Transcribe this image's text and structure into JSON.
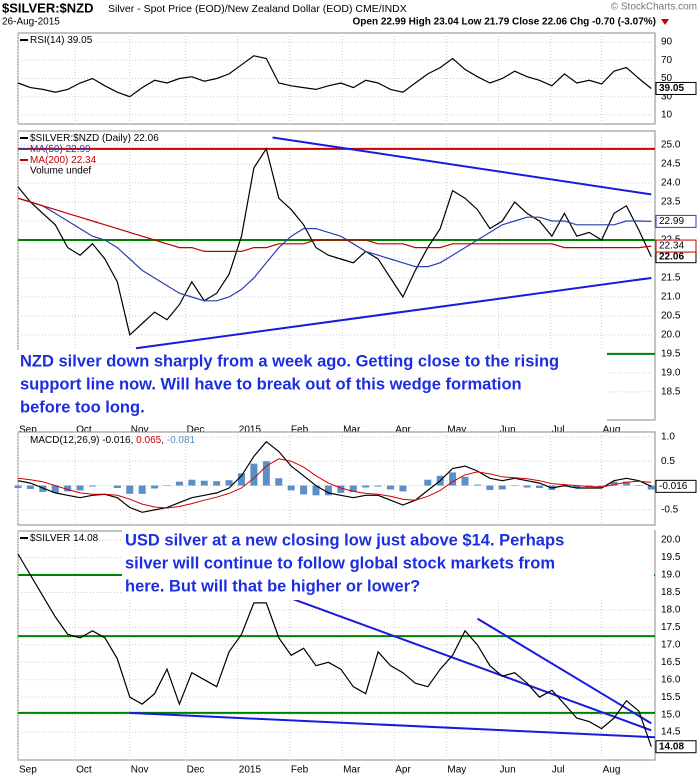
{
  "header": {
    "title": "$SILVER:$NZD",
    "subtitle": "Silver - Spot Price (EOD)/New Zealand Dollar (EOD) CME/INDX",
    "date": "26-Aug-2015",
    "stats": "Open 22.99 High 23.04 Low 21.79 Close 22.06 Chg -0.70 (-3.07%)",
    "credit": "© StockCharts.com"
  },
  "chart_data": [
    {
      "type": "line",
      "xlim": [
        0,
        51.3
      ],
      "xticks": [
        0,
        4.6,
        9,
        13.5,
        17.7,
        21.9,
        26.1,
        30.3,
        34.5,
        38.7,
        42.9,
        47
      ],
      "ylim": [
        0,
        100
      ],
      "yticks": [
        10,
        30,
        50,
        70,
        90
      ],
      "grid": true,
      "x": [
        0,
        1,
        2,
        3,
        4,
        5,
        6,
        7,
        8,
        9,
        10,
        11,
        12,
        13,
        14,
        15,
        16,
        17,
        18,
        19,
        20,
        21,
        22,
        23,
        24,
        25,
        26,
        27,
        28,
        29,
        30,
        31,
        32,
        33,
        34,
        35,
        36,
        37,
        38,
        39,
        40,
        41,
        42,
        43,
        44,
        45,
        46,
        47,
        48,
        49,
        50,
        51
      ],
      "series": [
        {
          "name": "RSI(14)",
          "color": "#000000",
          "values": [
            45,
            40,
            38,
            35,
            38,
            45,
            50,
            42,
            35,
            30,
            40,
            48,
            45,
            50,
            52,
            47,
            50,
            55,
            65,
            75,
            72,
            45,
            42,
            40,
            38,
            42,
            45,
            40,
            48,
            45,
            38,
            35,
            45,
            55,
            62,
            72,
            60,
            52,
            45,
            50,
            58,
            52,
            48,
            42,
            55,
            45,
            48,
            44,
            58,
            62,
            50,
            39.05
          ]
        }
      ]
    },
    {
      "type": "line",
      "xlim": [
        0,
        51.3
      ],
      "xticks": [
        {
          "value": 0,
          "label": "Sep"
        },
        {
          "value": 4.6,
          "label": "Oct"
        },
        {
          "value": 9,
          "label": "Nov"
        },
        {
          "value": 13.5,
          "label": "Dec"
        },
        {
          "value": 17.7,
          "label": "2015"
        },
        {
          "value": 21.9,
          "label": "Feb"
        },
        {
          "value": 26.1,
          "label": "Mar"
        },
        {
          "value": 30.3,
          "label": "Apr"
        },
        {
          "value": 34.5,
          "label": "May"
        },
        {
          "value": 38.7,
          "label": "Jun"
        },
        {
          "value": 42.9,
          "label": "Jul"
        },
        {
          "value": 47,
          "label": "Aug"
        }
      ],
      "ylim": [
        17.76,
        25.37
      ],
      "yticks": [
        18.5,
        {
          "value": 19,
          "label": "19.0"
        },
        19.5,
        {
          "value": 20,
          "label": "20.0"
        },
        20.5,
        {
          "value": 21,
          "label": "21.0"
        },
        21.5,
        {
          "value": 22,
          "label": "22.0"
        },
        22.5,
        {
          "value": 23,
          "label": "23.0"
        },
        23.5,
        {
          "value": 24,
          "label": "24.0"
        },
        24.5,
        {
          "value": 25,
          "label": "25.0"
        }
      ],
      "grid": true,
      "note": "Volume undef",
      "x": [
        0,
        1,
        2,
        3,
        4,
        5,
        6,
        7,
        8,
        9,
        10,
        11,
        12,
        13,
        14,
        15,
        16,
        17,
        18,
        19,
        20,
        21,
        22,
        23,
        24,
        25,
        26,
        27,
        28,
        29,
        30,
        31,
        32,
        33,
        34,
        35,
        36,
        37,
        38,
        39,
        40,
        41,
        42,
        43,
        44,
        45,
        46,
        47,
        48,
        49,
        50,
        51
      ],
      "series": [
        {
          "name": "$SILVER:$NZD (Daily)",
          "color": "#000000",
          "values": [
            23.9,
            23.5,
            23.2,
            22.9,
            22.3,
            22.1,
            22.4,
            22.0,
            21.4,
            20.0,
            20.3,
            20.6,
            20.4,
            20.8,
            21.4,
            20.9,
            21.1,
            21.6,
            22.6,
            24.4,
            24.9,
            23.6,
            23.3,
            22.9,
            22.3,
            22.1,
            22.0,
            21.9,
            22.2,
            22.0,
            21.5,
            21.0,
            21.7,
            22.3,
            22.8,
            23.8,
            23.6,
            23.3,
            22.8,
            23.0,
            23.5,
            23.2,
            23.0,
            22.6,
            23.2,
            22.6,
            22.7,
            22.5,
            23.2,
            23.4,
            22.76,
            22.06
          ]
        },
        {
          "name": "MA(50)",
          "color": "#2b3fb0",
          "values": [
            23.6,
            23.5,
            23.4,
            23.2,
            23.0,
            22.8,
            22.6,
            22.5,
            22.3,
            22.0,
            21.7,
            21.5,
            21.3,
            21.1,
            21.0,
            20.9,
            20.9,
            21.0,
            21.2,
            21.5,
            21.9,
            22.3,
            22.6,
            22.8,
            22.8,
            22.7,
            22.6,
            22.4,
            22.2,
            22.1,
            22.0,
            21.9,
            21.8,
            21.8,
            21.9,
            22.1,
            22.3,
            22.5,
            22.7,
            22.9,
            23.0,
            23.1,
            23.1,
            23.0,
            23.0,
            22.9,
            22.9,
            22.9,
            22.9,
            23.0,
            23.0,
            22.99
          ]
        },
        {
          "name": "MA(200)",
          "color": "#c00000",
          "values": [
            23.6,
            23.5,
            23.4,
            23.3,
            23.2,
            23.1,
            23.0,
            22.9,
            22.8,
            22.7,
            22.6,
            22.5,
            22.4,
            22.3,
            22.3,
            22.2,
            22.2,
            22.2,
            22.2,
            22.3,
            22.3,
            22.4,
            22.4,
            22.4,
            22.5,
            22.5,
            22.5,
            22.5,
            22.5,
            22.4,
            22.4,
            22.4,
            22.3,
            22.3,
            22.3,
            22.4,
            22.4,
            22.4,
            22.4,
            22.4,
            22.4,
            22.4,
            22.4,
            22.4,
            22.3,
            22.3,
            22.3,
            22.3,
            22.3,
            22.3,
            22.3,
            22.34
          ]
        }
      ],
      "lines": [
        {
          "color": "#cc0000",
          "x": [
            0,
            51.3
          ],
          "values": [
            24.9,
            24.9
          ]
        },
        {
          "color": "#008000",
          "x": [
            0,
            51.3
          ],
          "values": [
            22.5,
            22.5
          ]
        },
        {
          "color": "#008000",
          "x": [
            0,
            51.3
          ],
          "values": [
            19.5,
            19.5
          ]
        },
        {
          "color": "#1a1adf",
          "x": [
            20.5,
            51
          ],
          "values": [
            25.2,
            23.7
          ]
        },
        {
          "color": "#1a1adf",
          "x": [
            9.5,
            51
          ],
          "values": [
            19.65,
            21.5
          ]
        }
      ],
      "annotation": [
        "NZD silver down sharply from a week ago. Getting close to the rising",
        "support line now. Will have to break out of this wedge formation",
        "before too long."
      ]
    },
    {
      "type": "line",
      "xlim": [
        0,
        51.3
      ],
      "xticks": [
        0,
        4.6,
        9,
        13.5,
        17.7,
        21.9,
        26.1,
        30.3,
        34.5,
        38.7,
        42.9,
        47
      ],
      "ylim": [
        -0.81,
        1.1
      ],
      "yticks": [
        {
          "value": -0.5,
          "label": "-0.5"
        },
        {
          "value": 0,
          "label": "0.0"
        },
        0.5,
        {
          "value": 1,
          "label": "1.0"
        }
      ],
      "grid": true,
      "x": [
        0,
        1,
        2,
        3,
        4,
        5,
        6,
        7,
        8,
        9,
        10,
        11,
        12,
        13,
        14,
        15,
        16,
        17,
        18,
        19,
        20,
        21,
        22,
        23,
        24,
        25,
        26,
        27,
        28,
        29,
        30,
        31,
        32,
        33,
        34,
        35,
        36,
        37,
        38,
        39,
        40,
        41,
        42,
        43,
        44,
        45,
        46,
        47,
        48,
        49,
        50,
        51
      ],
      "series": [
        {
          "type": "bar",
          "color": "#5b8fc7",
          "values": [
            -0.05,
            -0.07,
            -0.13,
            -0.15,
            -0.12,
            -0.1,
            -0.02,
            0,
            -0.05,
            -0.17,
            -0.17,
            -0.06,
            0.01,
            0.08,
            0.12,
            0.1,
            0.09,
            0.11,
            0.25,
            0.45,
            0.5,
            0.15,
            -0.1,
            -0.18,
            -0.2,
            -0.2,
            -0.15,
            -0.13,
            -0.04,
            -0.02,
            -0.08,
            -0.12,
            0,
            0.12,
            0.2,
            0.27,
            0.18,
            0.02,
            -0.09,
            -0.08,
            -0.01,
            -0.04,
            -0.05,
            -0.09,
            -0.02,
            -0.05,
            -0.03,
            -0.02,
            0.08,
            0.08,
            0.01,
            -0.081
          ]
        },
        {
          "name": "MACD(12,26,9)",
          "color": "#000000",
          "values": [
            0.1,
            0.05,
            -0.05,
            -0.15,
            -0.2,
            -0.25,
            -0.2,
            -0.18,
            -0.25,
            -0.45,
            -0.55,
            -0.5,
            -0.45,
            -0.35,
            -0.25,
            -0.2,
            -0.15,
            -0.05,
            0.2,
            0.6,
            0.9,
            0.7,
            0.4,
            0.2,
            0.0,
            -0.15,
            -0.2,
            -0.25,
            -0.2,
            -0.2,
            -0.3,
            -0.4,
            -0.3,
            -0.1,
            0.1,
            0.35,
            0.4,
            0.3,
            0.15,
            0.1,
            0.15,
            0.1,
            0.05,
            -0.05,
            0.0,
            -0.05,
            -0.05,
            -0.05,
            0.1,
            0.15,
            0.1,
            -0.016
          ]
        },
        {
          "color": "#d00000",
          "values": [
            0.15,
            0.12,
            0.08,
            0.0,
            -0.08,
            -0.15,
            -0.18,
            -0.18,
            -0.2,
            -0.28,
            -0.38,
            -0.44,
            -0.46,
            -0.43,
            -0.37,
            -0.3,
            -0.24,
            -0.16,
            -0.05,
            0.15,
            0.4,
            0.55,
            0.5,
            0.38,
            0.2,
            0.05,
            -0.05,
            -0.12,
            -0.16,
            -0.18,
            -0.22,
            -0.28,
            -0.3,
            -0.22,
            -0.1,
            0.08,
            0.22,
            0.28,
            0.24,
            0.18,
            0.16,
            0.14,
            0.1,
            0.04,
            0.02,
            0.0,
            -0.02,
            -0.03,
            0.02,
            0.07,
            0.09,
            0.065
          ]
        }
      ]
    },
    {
      "type": "line",
      "xlim": [
        0,
        51.3
      ],
      "xticks": [
        {
          "value": 0,
          "label": "Sep"
        },
        {
          "value": 4.6,
          "label": "Oct"
        },
        {
          "value": 9,
          "label": "Nov"
        },
        {
          "value": 13.5,
          "label": "Dec"
        },
        {
          "value": 17.7,
          "label": "2015"
        },
        {
          "value": 21.9,
          "label": "Feb"
        },
        {
          "value": 26.1,
          "label": "Mar"
        },
        {
          "value": 30.3,
          "label": "Apr"
        },
        {
          "value": 34.5,
          "label": "May"
        },
        {
          "value": 38.7,
          "label": "Jun"
        },
        {
          "value": 42.9,
          "label": "Jul"
        },
        {
          "value": 47,
          "label": "Aug"
        }
      ],
      "ylim": [
        13.7,
        20.26
      ],
      "yticks": [
        14.5,
        {
          "value": 15,
          "label": "15.0"
        },
        15.5,
        {
          "value": 16,
          "label": "16.0"
        },
        16.5,
        {
          "value": 17,
          "label": "17.0"
        },
        17.5,
        {
          "value": 18,
          "label": "18.0"
        },
        18.5,
        {
          "value": 19,
          "label": "19.0"
        },
        19.5,
        {
          "value": 20,
          "label": "20.0"
        }
      ],
      "grid": true,
      "x": [
        0,
        1,
        2,
        3,
        4,
        5,
        6,
        7,
        8,
        9,
        10,
        11,
        12,
        13,
        14,
        15,
        16,
        17,
        18,
        19,
        20,
        21,
        22,
        23,
        24,
        25,
        26,
        27,
        28,
        29,
        30,
        31,
        32,
        33,
        34,
        35,
        36,
        37,
        38,
        39,
        40,
        41,
        42,
        43,
        44,
        45,
        46,
        47,
        48,
        49,
        50,
        51
      ],
      "series": [
        {
          "name": "$SILVER",
          "color": "#000000",
          "values": [
            19.6,
            19.0,
            18.4,
            17.8,
            17.3,
            17.2,
            17.4,
            17.2,
            16.6,
            15.5,
            15.3,
            15.6,
            16.3,
            15.3,
            16.2,
            16.0,
            15.8,
            16.8,
            17.3,
            18.2,
            18.2,
            17.2,
            16.7,
            16.9,
            16.4,
            16.5,
            16.3,
            15.8,
            15.6,
            16.8,
            16.4,
            16.2,
            15.9,
            15.8,
            16.3,
            16.7,
            17.4,
            17.0,
            16.4,
            16.1,
            16.2,
            15.9,
            15.5,
            15.7,
            15.3,
            14.9,
            14.8,
            14.6,
            14.9,
            15.4,
            15.1,
            14.08
          ]
        }
      ],
      "lines": [
        {
          "color": "#008000",
          "x": [
            0,
            51.3
          ],
          "values": [
            19.0,
            19.0
          ]
        },
        {
          "color": "#008000",
          "x": [
            0,
            51.3
          ],
          "values": [
            17.25,
            17.25
          ]
        },
        {
          "color": "#008000",
          "x": [
            0,
            51.3
          ],
          "values": [
            15.05,
            15.05
          ]
        },
        {
          "color": "#1a1adf",
          "x": [
            9,
            51.3
          ],
          "values": [
            15.05,
            14.35
          ]
        },
        {
          "color": "#1a1adf",
          "x": [
            20.3,
            51
          ],
          "values": [
            18.55,
            14.55
          ]
        },
        {
          "color": "#1a1adf",
          "x": [
            37,
            51
          ],
          "values": [
            17.75,
            14.75
          ]
        }
      ],
      "annotation": [
        "USD silver at a new closing low just above $14. Perhaps",
        "silver will continue to follow global stock markets from",
        "here. But will that be higher or lower?"
      ]
    }
  ]
}
